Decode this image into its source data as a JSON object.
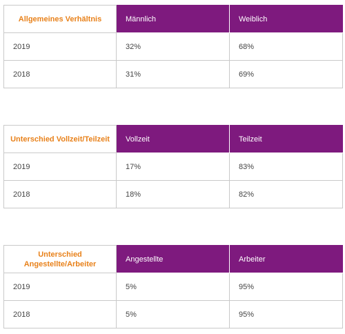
{
  "tables": [
    {
      "corner_label": "Allgemeines Verhältnis",
      "columns": [
        "Männlich",
        "Weiblich"
      ],
      "rows": [
        {
          "year": "2019",
          "values": [
            "32%",
            "68%"
          ]
        },
        {
          "year": "2018",
          "values": [
            "31%",
            "69%"
          ]
        }
      ]
    },
    {
      "corner_label": "Unterschied Vollzeit/Teilzeit",
      "columns": [
        "Vollzeit",
        "Teilzeit"
      ],
      "rows": [
        {
          "year": "2019",
          "values": [
            "17%",
            "83%"
          ]
        },
        {
          "year": "2018",
          "values": [
            "18%",
            "82%"
          ]
        }
      ]
    },
    {
      "corner_label_line1": "Unterschied",
      "corner_label_line2": "Angestellte/Arbeiter",
      "columns": [
        "Angestellte",
        "Arbeiter"
      ],
      "rows": [
        {
          "year": "2019",
          "values": [
            "5%",
            "95%"
          ]
        },
        {
          "year": "2018",
          "values": [
            "5%",
            "95%"
          ]
        }
      ]
    }
  ],
  "colors": {
    "header_background": "#7e1a7e",
    "header_text": "#ffffff",
    "corner_label": "#e8811a",
    "body_text": "#444444",
    "border": "#c9c9c9"
  }
}
